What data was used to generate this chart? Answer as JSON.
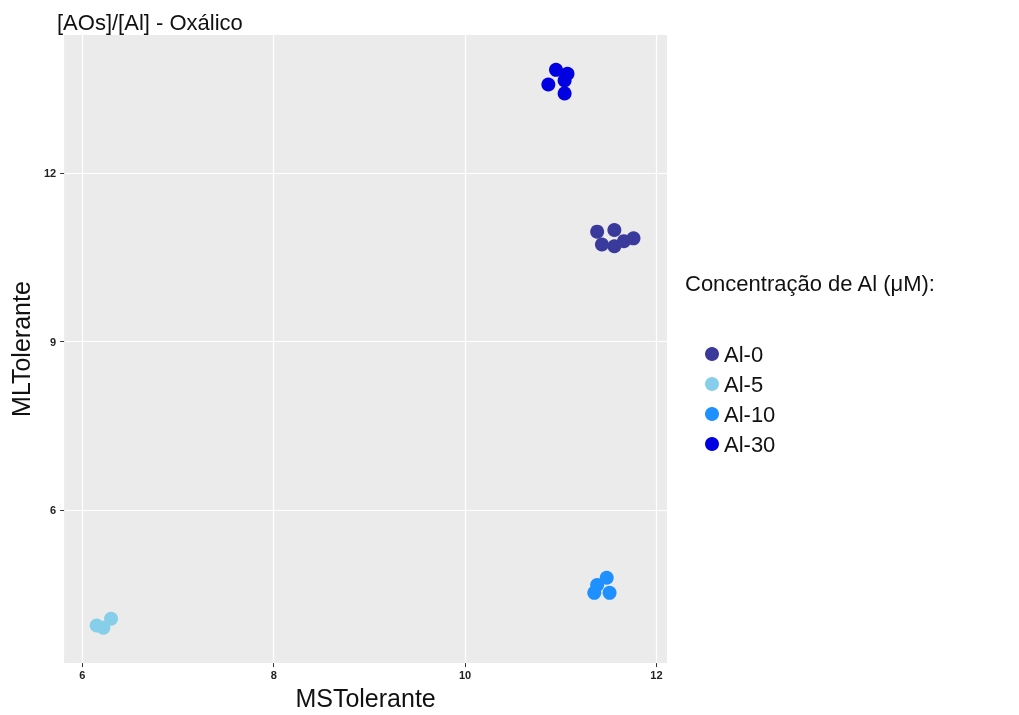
{
  "chart_data": {
    "type": "scatter",
    "title": "[AOs]/[Al] - Oxálico",
    "xlabel": "MSTolerante",
    "ylabel": "MLTolerante",
    "legend_title": "Concentração de Al (μM):",
    "xlim": [
      5.81,
      12.11
    ],
    "xticks": [
      6,
      8,
      10,
      12
    ],
    "ylim": [
      3.28,
      14.46
    ],
    "yticks": [
      6,
      9,
      12
    ],
    "grid": true,
    "legend": "right",
    "marker": "circle",
    "series": [
      {
        "name": "Al-0",
        "color": "#3a3a9c",
        "x": [
          11.38,
          11.56,
          11.43,
          11.56,
          11.66,
          11.76
        ],
        "values": [
          10.96,
          10.99,
          10.73,
          10.7,
          10.79,
          10.84
        ]
      },
      {
        "name": "Al-5",
        "color": "#87ceeb",
        "x": [
          6.15,
          6.22,
          6.3
        ],
        "values": [
          3.95,
          3.91,
          4.07
        ]
      },
      {
        "name": "Al-10",
        "color": "#1e90ff",
        "x": [
          11.48,
          11.38,
          11.35,
          11.51
        ],
        "values": [
          4.8,
          4.67,
          4.53,
          4.53
        ]
      },
      {
        "name": "Al-30",
        "color": "#0000e0",
        "x": [
          10.95,
          11.07,
          11.04,
          11.04,
          10.87
        ],
        "values": [
          13.84,
          13.77,
          13.65,
          13.42,
          13.58
        ]
      }
    ]
  }
}
